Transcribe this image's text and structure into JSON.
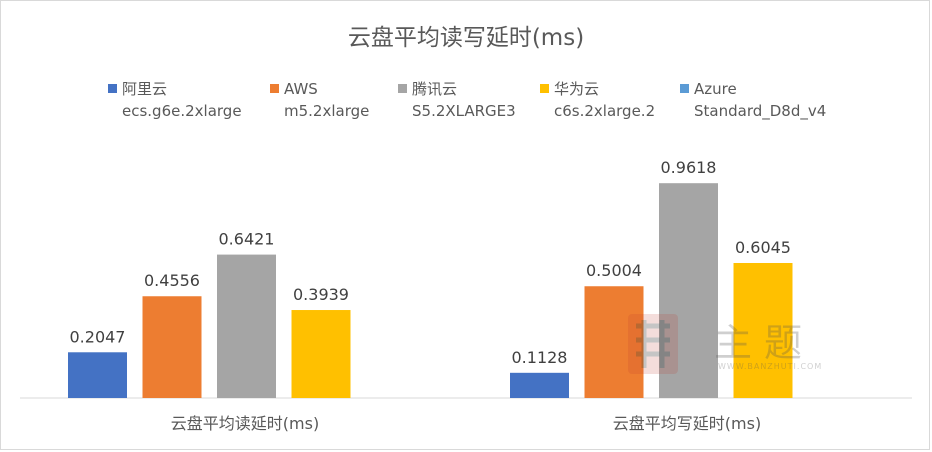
{
  "chart_data": {
    "type": "bar",
    "title": "云盘平均读写延时(ms)",
    "categories": [
      "云盘平均读延时(ms)",
      "云盘平均写延时(ms)"
    ],
    "series": [
      {
        "name": "阿里云",
        "name_line2": "ecs.g6e.2xlarge",
        "color": "#4472c4",
        "values": [
          0.2047,
          0.1128
        ],
        "labels": [
          "0.2047",
          "0.1128"
        ]
      },
      {
        "name": "AWS",
        "name_line2": "m5.2xlarge",
        "color": "#ed7d31",
        "values": [
          0.4556,
          0.5004
        ],
        "labels": [
          "0.4556",
          "0.5004"
        ]
      },
      {
        "name": "腾讯云",
        "name_line2": "S5.2XLARGE3",
        "color": "#a5a5a5",
        "values": [
          0.6421,
          0.9618
        ],
        "labels": [
          "0.6421",
          "0.9618"
        ]
      },
      {
        "name": "华为云",
        "name_line2": "c6s.2xlarge.2",
        "color": "#ffc000",
        "values": [
          0.3939,
          0.6045
        ],
        "labels": [
          "0.3939",
          "0.6045"
        ]
      },
      {
        "name": "Azure",
        "name_line2": "Standard_D8d_v4",
        "color": "#5b9bd5",
        "values": [
          null,
          null
        ],
        "labels": [
          "",
          ""
        ]
      }
    ],
    "ylim": [
      0,
      1.2
    ],
    "grid": false,
    "legend_position": "top"
  },
  "watermark": {
    "text": "主题",
    "url": "WWW.BANZHUTI.COM"
  }
}
